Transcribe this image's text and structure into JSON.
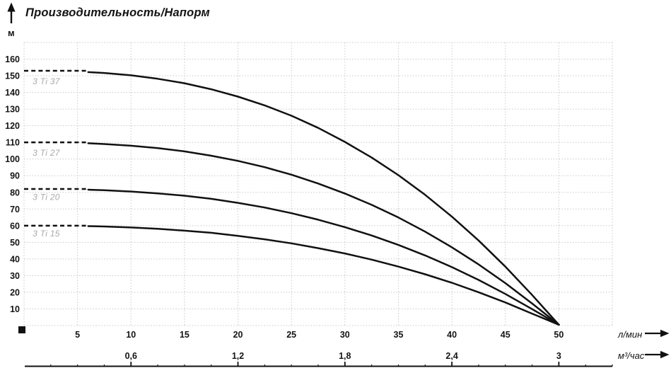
{
  "colors": {
    "curve": "#111111",
    "grid": "#c8c8c8",
    "text": "#141414",
    "series_label": "#a9a9a9"
  },
  "chart_data": {
    "type": "line",
    "title": "Производительность/Напорм",
    "ylabel": "м",
    "xlabel": "л/мин",
    "x2label": "м³/час",
    "xlim": [
      0,
      55
    ],
    "ylim": [
      0,
      170
    ],
    "grid": true,
    "grid_step_x": 5,
    "grid_step_y": 10,
    "legend_position": "none",
    "x_ticks": [
      5,
      10,
      15,
      20,
      25,
      30,
      35,
      40,
      45,
      50
    ],
    "y_ticks": [
      10,
      20,
      30,
      40,
      50,
      60,
      70,
      80,
      90,
      100,
      110,
      120,
      130,
      140,
      150,
      160
    ],
    "x2_ticks": [
      {
        "pos": 10,
        "label": "0,6"
      },
      {
        "pos": 20,
        "label": "1,2"
      },
      {
        "pos": 30,
        "label": "1,8"
      },
      {
        "pos": 40,
        "label": "2,4"
      },
      {
        "pos": 50,
        "label": "3"
      }
    ],
    "x2_minor_step": 2.5,
    "series": [
      {
        "name": "3 Ti 37",
        "head_at_zero_flow": 153,
        "dash_until": 6,
        "label_at": [
          0.8,
          145
        ],
        "x": [
          0,
          2.5,
          5,
          6,
          7.5,
          10,
          12.5,
          15,
          17.5,
          20,
          22.5,
          25,
          27.5,
          30,
          32.5,
          35,
          37.5,
          40,
          42.5,
          45,
          47.5,
          50
        ],
        "y": [
          153,
          152.9,
          152.5,
          152.2,
          151.7,
          150.3,
          148.2,
          145.5,
          141.9,
          137.5,
          132.2,
          126.0,
          118.7,
          110.3,
          100.9,
          90.3,
          78.5,
          65.4,
          51.1,
          35.4,
          18.4,
          0.5
        ]
      },
      {
        "name": "3 Ti 27",
        "head_at_zero_flow": 110,
        "dash_until": 6,
        "label_at": [
          0.8,
          102
        ],
        "x": [
          0,
          2.5,
          5,
          6,
          7.5,
          10,
          12.5,
          15,
          17.5,
          20,
          22.5,
          25,
          27.5,
          30,
          32.5,
          35,
          37.5,
          40,
          42.5,
          45,
          47.5,
          50
        ],
        "y": [
          110,
          109.9,
          109.7,
          109.5,
          109.0,
          108.0,
          106.6,
          104.6,
          102.0,
          98.9,
          95.1,
          90.6,
          85.3,
          79.3,
          72.5,
          64.9,
          56.4,
          47.0,
          36.7,
          25.5,
          13.3,
          0.5
        ]
      },
      {
        "name": "3 Ti 20",
        "head_at_zero_flow": 82,
        "dash_until": 6,
        "label_at": [
          0.8,
          75.5
        ],
        "x": [
          0,
          2.5,
          5,
          6,
          7.5,
          10,
          12.5,
          15,
          17.5,
          20,
          22.5,
          25,
          27.5,
          30,
          32.5,
          35,
          37.5,
          40,
          42.5,
          45,
          47.5,
          50
        ],
        "y": [
          82,
          82.0,
          81.7,
          81.6,
          81.3,
          80.5,
          79.4,
          78.0,
          76.1,
          73.7,
          70.9,
          67.5,
          63.6,
          59.1,
          54.1,
          48.4,
          42.1,
          35.1,
          27.4,
          19.0,
          9.9,
          0.5
        ]
      },
      {
        "name": "3 Ti 15",
        "head_at_zero_flow": 60,
        "dash_until": 6,
        "label_at": [
          0.8,
          53.5
        ],
        "x": [
          0,
          2.5,
          5,
          6,
          7.5,
          10,
          12.5,
          15,
          17.5,
          20,
          22.5,
          25,
          27.5,
          30,
          32.5,
          35,
          37.5,
          40,
          42.5,
          45,
          47.5,
          50
        ],
        "y": [
          60,
          60.0,
          59.8,
          59.7,
          59.5,
          58.9,
          58.1,
          57.0,
          55.7,
          53.9,
          51.8,
          49.4,
          46.5,
          43.3,
          39.6,
          35.4,
          30.8,
          25.7,
          20.0,
          13.9,
          7.2,
          0.5
        ]
      }
    ]
  }
}
